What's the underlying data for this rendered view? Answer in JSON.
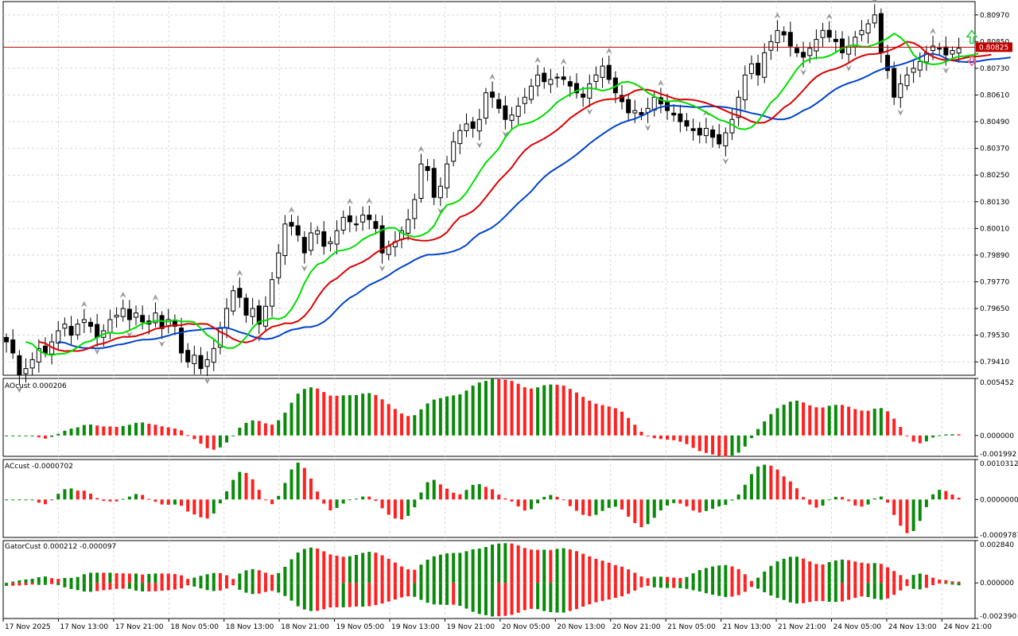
{
  "chart_data": [
    {
      "panel": "price",
      "type": "candlestick",
      "ylim": [
        0.7935,
        0.8103
      ],
      "y_ticks": [
        "0.80970",
        "0.80850",
        "0.80730",
        "0.80610",
        "0.80490",
        "0.80370",
        "0.80250",
        "0.80130",
        "0.80010",
        "0.79890",
        "0.79770",
        "0.79650",
        "0.79530",
        "0.79410"
      ],
      "current_price": {
        "label": "0.80825",
        "value": 0.80825,
        "color": "#c00000"
      },
      "colors": {
        "bull_fill": "#ffffff",
        "bear_fill": "#000000",
        "wick": "#000000",
        "green_line": "#00dd00",
        "red_line": "#dd0000",
        "blue_line": "#0044cc"
      },
      "candles_ohlc_start": [
        0.7952,
        0.7955,
        0.7945,
        0.795
      ],
      "close_path": [
        0.795,
        0.7945,
        0.7935,
        0.7938,
        0.7942,
        0.7947,
        0.7945,
        0.795,
        0.7955,
        0.7958,
        0.7953,
        0.7958,
        0.796,
        0.7957,
        0.7952,
        0.7955,
        0.796,
        0.7962,
        0.7965,
        0.796,
        0.7963,
        0.7959,
        0.7958,
        0.7963,
        0.7956,
        0.796,
        0.7957,
        0.7945,
        0.7941,
        0.7944,
        0.7938,
        0.7942,
        0.7947,
        0.7956,
        0.7965,
        0.7973,
        0.797,
        0.7962,
        0.7965,
        0.7958,
        0.7966,
        0.7978,
        0.799,
        0.8003,
        0.8002,
        0.7998,
        0.799,
        0.7999,
        0.8,
        0.7993,
        0.7995,
        0.8,
        0.8006,
        0.8004,
        0.8003,
        0.8007,
        0.8005,
        0.8001,
        0.799,
        0.7993,
        0.7995,
        0.8,
        0.8005,
        0.8014,
        0.803,
        0.8027,
        0.8015,
        0.802,
        0.803,
        0.804,
        0.8045,
        0.8048,
        0.8046,
        0.805,
        0.8062,
        0.806,
        0.8055,
        0.805,
        0.8052,
        0.8056,
        0.806,
        0.8065,
        0.807,
        0.8067,
        0.8068,
        0.8069,
        0.8068,
        0.8065,
        0.8062,
        0.806,
        0.8066,
        0.807,
        0.8074,
        0.8068,
        0.8062,
        0.8058,
        0.8053,
        0.8054,
        0.8052,
        0.8055,
        0.806,
        0.8057,
        0.8054,
        0.8052,
        0.8049,
        0.8047,
        0.8045,
        0.8043,
        0.8046,
        0.8042,
        0.8039,
        0.8044,
        0.805,
        0.806,
        0.807,
        0.8075,
        0.807,
        0.808,
        0.8085,
        0.809,
        0.8088,
        0.8083,
        0.808,
        0.8078,
        0.8082,
        0.8086,
        0.809,
        0.8087,
        0.8085,
        0.808,
        0.8083,
        0.8087,
        0.809,
        0.8093,
        0.8097,
        0.808,
        0.8072,
        0.806,
        0.8066,
        0.807,
        0.8073,
        0.8076,
        0.808,
        0.8083,
        0.8082,
        0.8079,
        0.8081,
        0.8082
      ]
    },
    {
      "panel": "AOcust",
      "label": "AOcust 0.000206",
      "type": "bar",
      "ylim": [
        -0.001992,
        0.005452
      ],
      "y_ticks": [
        "0.005452",
        "0.000000",
        "-0.001992"
      ],
      "colors": {
        "up": "#0a8a0a",
        "down": "#ff2020"
      }
    },
    {
      "panel": "ACcust",
      "label": "ACcust -0.0000702",
      "type": "bar",
      "ylim": [
        -0.0009787,
        0.0010312
      ],
      "y_ticks": [
        "0.0010312",
        "0.0000000",
        "-0.0009787"
      ],
      "colors": {
        "up": "#0a8a0a",
        "down": "#ff2020"
      }
    },
    {
      "panel": "GatorCust",
      "label": "GatorCust 0.000212 -0.000097",
      "type": "bar",
      "ylim": [
        -0.00239,
        0.00284
      ],
      "y_ticks": [
        "0.002840",
        "0.000000",
        "-0.002390"
      ],
      "colors": {
        "up": "#0a8a0a",
        "down": "#ff2020"
      }
    }
  ],
  "x_axis": {
    "labels": [
      "17 Nov 2025",
      "17 Nov 13:00",
      "17 Nov 21:00",
      "18 Nov 05:00",
      "18 Nov 13:00",
      "18 Nov 21:00",
      "19 Nov 05:00",
      "19 Nov 13:00",
      "19 Nov 21:00",
      "20 Nov 05:00",
      "20 Nov 13:00",
      "20 Nov 21:00",
      "21 Nov 05:00",
      "21 Nov 13:00",
      "21 Nov 21:00",
      "24 Nov 05:00",
      "24 Nov 13:00",
      "24 Nov 21:00"
    ]
  }
}
